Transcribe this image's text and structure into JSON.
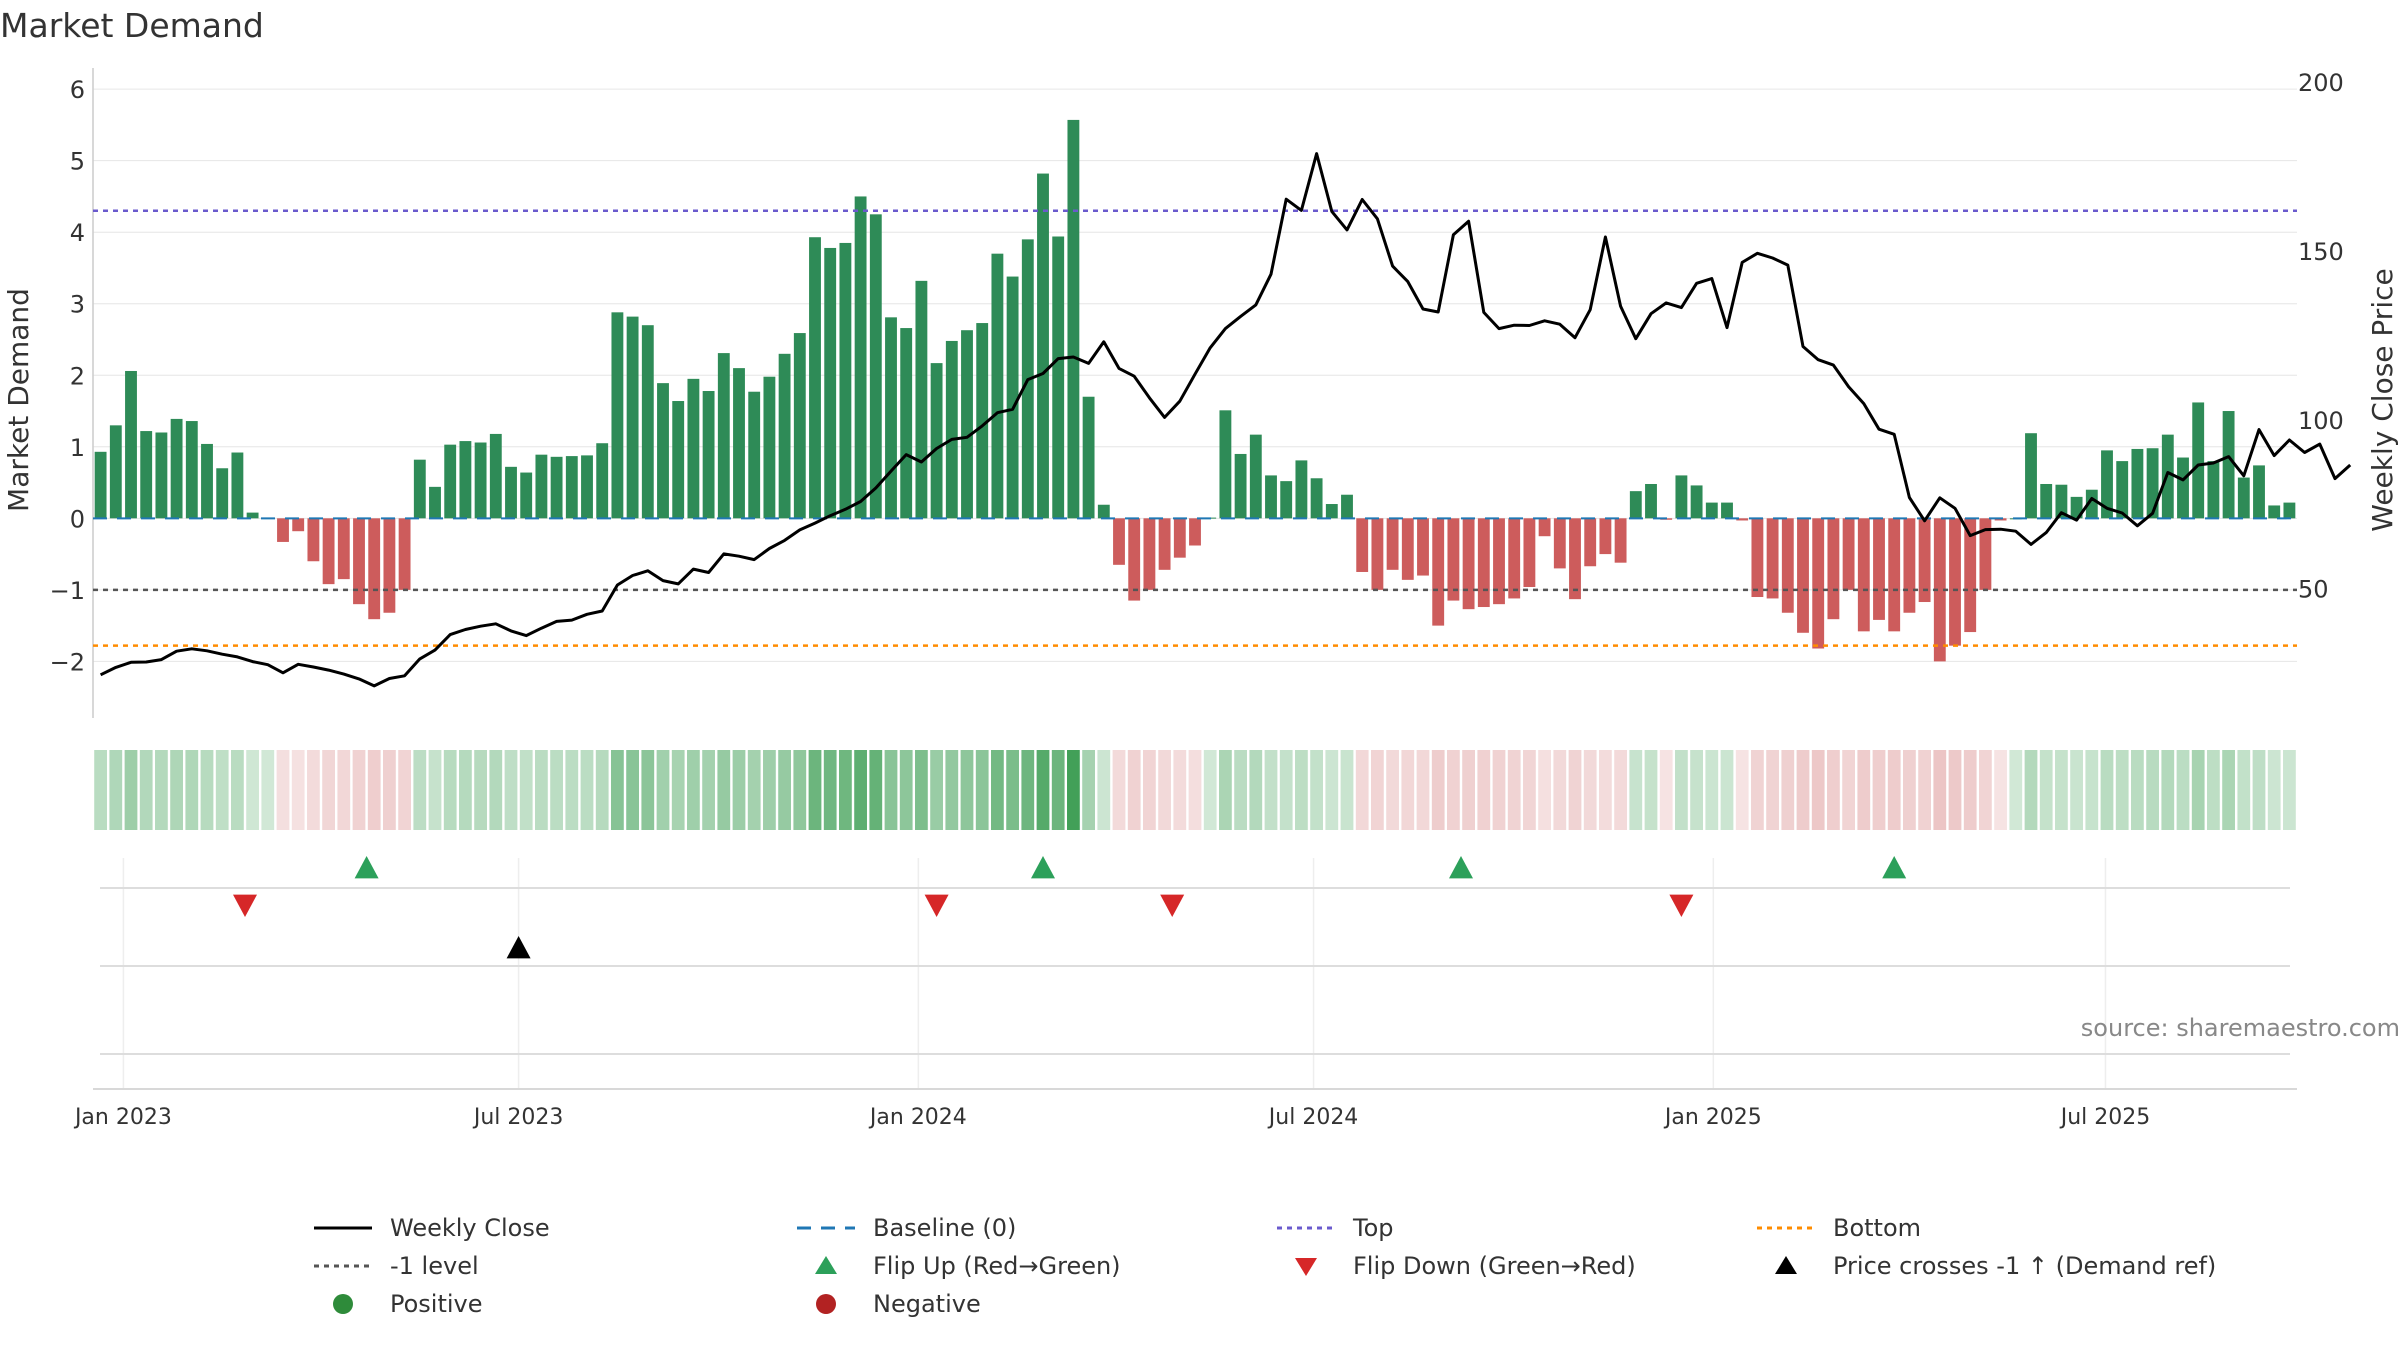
{
  "chart_data": {
    "type": "bar",
    "title": "Market Demand",
    "ylabel": "Market Demand",
    "y2label": "Weekly Close Price",
    "ylim": [
      -2.4,
      6.1
    ],
    "y2lim": [
      20,
      200
    ],
    "yticks": [
      -2,
      -1,
      0,
      1,
      2,
      3,
      4,
      5,
      6
    ],
    "y2ticks": [
      50,
      100,
      150,
      200
    ],
    "xticks": [
      {
        "label": "Jan 2023",
        "week": 0
      },
      {
        "label": "Jul 2023",
        "week": 26
      },
      {
        "label": "Jan 2024",
        "week": 52.3
      },
      {
        "label": "Jul 2024",
        "week": 78.3
      },
      {
        "label": "Jan 2025",
        "week": 104.6
      },
      {
        "label": "Jul 2025",
        "week": 130.4
      }
    ],
    "first_week": -1.5,
    "levels": {
      "top": 4.3,
      "bottom": -1.78,
      "minus_one": -1,
      "baseline": 0
    },
    "demand": [
      0.93,
      1.3,
      2.06,
      1.22,
      1.2,
      1.39,
      1.36,
      1.04,
      0.7,
      0.92,
      0.08,
      0.01,
      -0.33,
      -0.18,
      -0.6,
      -0.92,
      -0.85,
      -1.2,
      -1.41,
      -1.32,
      -1.0,
      0.82,
      0.44,
      1.03,
      1.08,
      1.06,
      1.18,
      0.72,
      0.64,
      0.89,
      0.86,
      0.87,
      0.88,
      1.05,
      2.88,
      2.82,
      2.7,
      1.89,
      1.64,
      1.95,
      1.78,
      2.31,
      2.1,
      1.77,
      1.98,
      2.3,
      2.59,
      3.93,
      3.78,
      3.85,
      4.5,
      4.25,
      2.81,
      2.66,
      3.32,
      2.17,
      2.48,
      2.63,
      2.73,
      3.7,
      3.38,
      3.9,
      4.82,
      3.94,
      5.57,
      1.7,
      0.19,
      -0.65,
      -1.15,
      -1.0,
      -0.72,
      -0.55,
      -0.38,
      0.01,
      1.51,
      0.9,
      1.17,
      0.6,
      0.52,
      0.81,
      0.56,
      0.2,
      0.33,
      -0.75,
      -1.0,
      -0.72,
      -0.86,
      -0.8,
      -1.5,
      -1.15,
      -1.27,
      -1.24,
      -1.2,
      -1.12,
      -0.96,
      -0.25,
      -0.7,
      -1.13,
      -0.67,
      -0.5,
      -0.62,
      0.38,
      0.48,
      -0.02,
      0.6,
      0.46,
      0.22,
      0.22,
      -0.03,
      -1.1,
      -1.12,
      -1.32,
      -1.6,
      -1.82,
      -1.41,
      -1.0,
      -1.58,
      -1.42,
      -1.58,
      -1.32,
      -1.17,
      -2.0,
      -1.78,
      -1.59,
      -1.0,
      -0.03,
      0.0,
      1.19,
      0.48,
      0.47,
      0.3,
      0.4,
      0.95,
      0.8,
      0.97,
      0.98,
      1.17,
      0.85,
      1.62,
      0.8,
      1.5,
      0.57,
      0.74,
      0.18,
      0.22
    ],
    "close": [
      24.5,
      26.7,
      28.2,
      28.3,
      29.0,
      31.5,
      32.2,
      31.6,
      30.6,
      29.8,
      28.4,
      27.5,
      25.1,
      27.6,
      26.8,
      25.9,
      24.7,
      23.3,
      21.2,
      23.4,
      24.2,
      29.2,
      31.8,
      36.4,
      37.9,
      38.9,
      39.6,
      37.5,
      36.1,
      38.3,
      40.3,
      40.7,
      42.4,
      43.4,
      51.1,
      53.9,
      55.3,
      52.4,
      51.4,
      55.8,
      54.8,
      60.3,
      59.6,
      58.6,
      61.9,
      64.3,
      67.4,
      69.4,
      71.6,
      73.5,
      75.8,
      79.8,
      84.8,
      89.7,
      87.5,
      91.5,
      94.2,
      94.8,
      98.2,
      102.1,
      103.1,
      111.9,
      113.7,
      118.1,
      118.6,
      116.7,
      123.1,
      115.2,
      112.9,
      106.5,
      100.7,
      105.5,
      113.5,
      121.3,
      127.0,
      130.6,
      134.0,
      143.1,
      165.3,
      162.0,
      178.8,
      161.7,
      156.2,
      165.2,
      159.5,
      145.5,
      140.9,
      132.8,
      131.9,
      154.8,
      158.8,
      131.8,
      127.0,
      128.0,
      127.9,
      129.3,
      128.3,
      124.3,
      132.6,
      154.1,
      133.6,
      124.0,
      131.4,
      134.6,
      133.2,
      140.4,
      141.8,
      127.3,
      146.6,
      149.3,
      147.9,
      145.8,
      121.7,
      117.8,
      116.2,
      109.8,
      104.8,
      97.2,
      95.7,
      77.0,
      70.1,
      76.9,
      73.8,
      65.7,
      67.5,
      67.6,
      67.0,
      63.1,
      66.6,
      72.5,
      70.3,
      76.7,
      73.8,
      72.4,
      68.6,
      72.3,
      84.4,
      82.2,
      86.6,
      87.2,
      89.1,
      83.4,
      97.1,
      89.4,
      94.0,
      90.3,
      92.8,
      82.6,
      86.6
    ],
    "flip_up_weeks": [
      16,
      60.5,
      88,
      116.5
    ],
    "flip_down_weeks": [
      8,
      53.5,
      69,
      102.5
    ],
    "price_cross_weeks": [
      26
    ],
    "legend": [
      {
        "label": "Weekly Close",
        "kind": "line",
        "color": "#000000"
      },
      {
        "label": "Baseline (0)",
        "kind": "dash",
        "color": "#1f77b4"
      },
      {
        "label": "Top",
        "kind": "dot",
        "color": "#6a5acd"
      },
      {
        "label": "Bottom",
        "kind": "dot",
        "color": "#ff8c00"
      },
      {
        "label": "-1 level",
        "kind": "dot",
        "color": "#555555"
      },
      {
        "label": "Flip Up (Red→Green)",
        "kind": "tri-up",
        "color": "#2ca05a"
      },
      {
        "label": "Flip Down (Green→Red)",
        "kind": "tri-down",
        "color": "#d62728"
      },
      {
        "label": "Price crosses -1 ↑ (Demand ref)",
        "kind": "tri-up",
        "color": "#000000"
      },
      {
        "label": "Positive",
        "kind": "circle",
        "color": "#2e8b3a"
      },
      {
        "label": "Negative",
        "kind": "circle",
        "color": "#b22222"
      }
    ]
  },
  "source": "source: sharemaestro.com",
  "colors": {
    "positive_bar": "#2e8b57",
    "negative_bar": "#cd5c5c",
    "grid": "#e6e6e6",
    "axis": "#cccccc"
  }
}
